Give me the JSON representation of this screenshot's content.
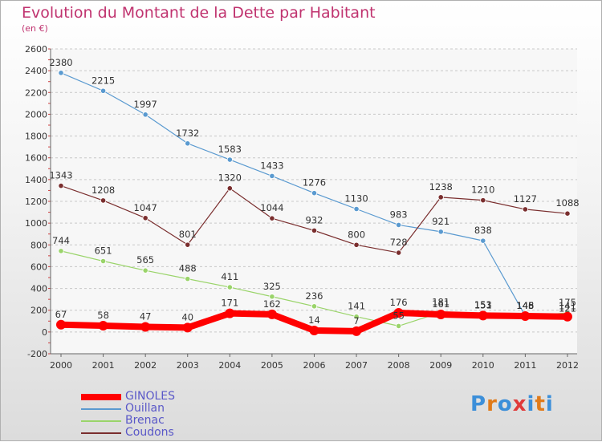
{
  "page": {
    "title": "Evolution du Montant de la Dette par Habitant",
    "subtitle": "(en €)"
  },
  "logo": {
    "text": "Proxiti",
    "letter_colors": [
      "#3c8fd9",
      "#e07b1a",
      "#3c8fd9",
      "#e03a3a",
      "#3c8fd9",
      "#e07b1a",
      "#3c8fd9"
    ]
  },
  "chart_data": {
    "type": "line",
    "title": "Evolution du Montant de la Dette par Habitant",
    "subtitle": "(en €)",
    "xlabel": "",
    "ylabel": "",
    "x": [
      "2000",
      "2001",
      "2002",
      "2003",
      "2004",
      "2005",
      "2006",
      "2007",
      "2008",
      "2009",
      "2010",
      "2011",
      "2012"
    ],
    "ylim": [
      -200,
      2600
    ],
    "yticks": [
      "-200",
      "0",
      "200",
      "400",
      "600",
      "800",
      "1000",
      "1200",
      "1400",
      "1600",
      "1800",
      "2000",
      "2200",
      "2400",
      "2600"
    ],
    "grid": "horizontal dashed",
    "legend_position": "bottom-left",
    "series": [
      {
        "name": "Ouillan",
        "color": "#5a9ad0",
        "values": [
          2380,
          2215,
          1997,
          1732,
          1583,
          1433,
          1276,
          1130,
          983,
          921,
          838,
          148,
          121
        ],
        "labels": [
          "2380",
          "2215",
          "1997",
          "1732",
          "1583",
          "1433",
          "1276",
          "1130",
          "983",
          "921",
          "838",
          "148",
          "121"
        ]
      },
      {
        "name": "Coudons",
        "color": "#7a2e2e",
        "values": [
          1343,
          1208,
          1047,
          801,
          1320,
          1044,
          932,
          800,
          728,
          1238,
          1210,
          1127,
          1088
        ],
        "labels": [
          "1343",
          "1208",
          "1047",
          "801",
          "1320",
          "1044",
          "932",
          "800",
          "728",
          "1238",
          "1210",
          "1127",
          "1088"
        ]
      },
      {
        "name": "Brenac",
        "color": "#9ad46a",
        "values": [
          744,
          651,
          565,
          488,
          411,
          325,
          236,
          141,
          55,
          181,
          153,
          145,
          175
        ],
        "labels": [
          "744",
          "651",
          "565",
          "488",
          "411",
          "325",
          "236",
          "141",
          "55",
          "181",
          "153",
          "145",
          "175"
        ]
      },
      {
        "name": "GINOLES",
        "color": "#ff0000",
        "values": [
          67,
          58,
          47,
          40,
          171,
          162,
          14,
          7,
          176,
          161,
          151,
          146,
          141
        ],
        "labels": [
          "67",
          "58",
          "47",
          "40",
          "171",
          "162",
          "14",
          "7",
          "176",
          "161",
          "151",
          "146",
          "141"
        ]
      }
    ],
    "legend_order": [
      "GINOLES",
      "Ouillan",
      "Brenac",
      "Coudons"
    ]
  }
}
